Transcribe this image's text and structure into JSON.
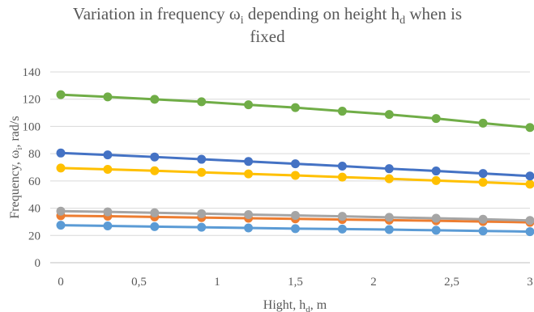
{
  "chart_data": {
    "type": "line",
    "title_line1": "Variation in frequency ω",
    "title_sub1": "i",
    "title_mid": " depending on height h",
    "title_sub2": "d",
    "title_end": "  when is",
    "title_line2": "fixed",
    "xlabel": "Hight, h",
    "xlabel_sub": "d",
    "xlabel_end": ", m",
    "ylabel": "Frequency, ω",
    "ylabel_sub": "i",
    "ylabel_end": ", rad/s",
    "x": [
      0,
      0.3,
      0.6,
      0.9,
      1.2,
      1.5,
      1.8,
      2.1,
      2.4,
      2.7,
      3.0
    ],
    "xlim": [
      0,
      3
    ],
    "ylim": [
      0,
      140
    ],
    "x_ticks": [
      0,
      0.5,
      1,
      1.5,
      2,
      2.5,
      3
    ],
    "x_tick_labels": [
      "0",
      "0,5",
      "1",
      "1,5",
      "2",
      "2,5",
      "3"
    ],
    "y_ticks": [
      0,
      20,
      40,
      60,
      80,
      100,
      120,
      140
    ],
    "y_tick_labels": [
      "0",
      "20",
      "40",
      "60",
      "80",
      "100",
      "120",
      "140"
    ],
    "grid": "horizontal",
    "legend": "none",
    "series": [
      {
        "color": "#5B9BD5",
        "values": [
          27.5,
          27.0,
          26.5,
          26.0,
          25.5,
          25.0,
          24.7,
          24.3,
          23.8,
          23.3,
          22.8
        ]
      },
      {
        "color": "#ED7D31",
        "values": [
          34.5,
          34.1,
          33.6,
          33.1,
          32.6,
          32.2,
          31.7,
          31.2,
          30.8,
          30.2,
          29.6
        ]
      },
      {
        "color": "#A5A5A5",
        "values": [
          37.8,
          37.3,
          36.6,
          36.0,
          35.3,
          34.7,
          34.0,
          33.3,
          32.6,
          31.9,
          31.0
        ]
      },
      {
        "color": "#FFC000",
        "values": [
          69.5,
          68.5,
          67.5,
          66.3,
          65.2,
          64.1,
          62.8,
          61.6,
          60.3,
          59.0,
          57.6
        ]
      },
      {
        "color": "#4472C4",
        "values": [
          80.5,
          79.1,
          77.6,
          75.9,
          74.3,
          72.6,
          70.9,
          69.0,
          67.3,
          65.5,
          63.6
        ]
      },
      {
        "color": "#70AD47",
        "values": [
          123.3,
          121.7,
          119.9,
          118.1,
          115.9,
          113.8,
          111.2,
          108.8,
          105.8,
          102.4,
          99.2
        ]
      }
    ]
  }
}
